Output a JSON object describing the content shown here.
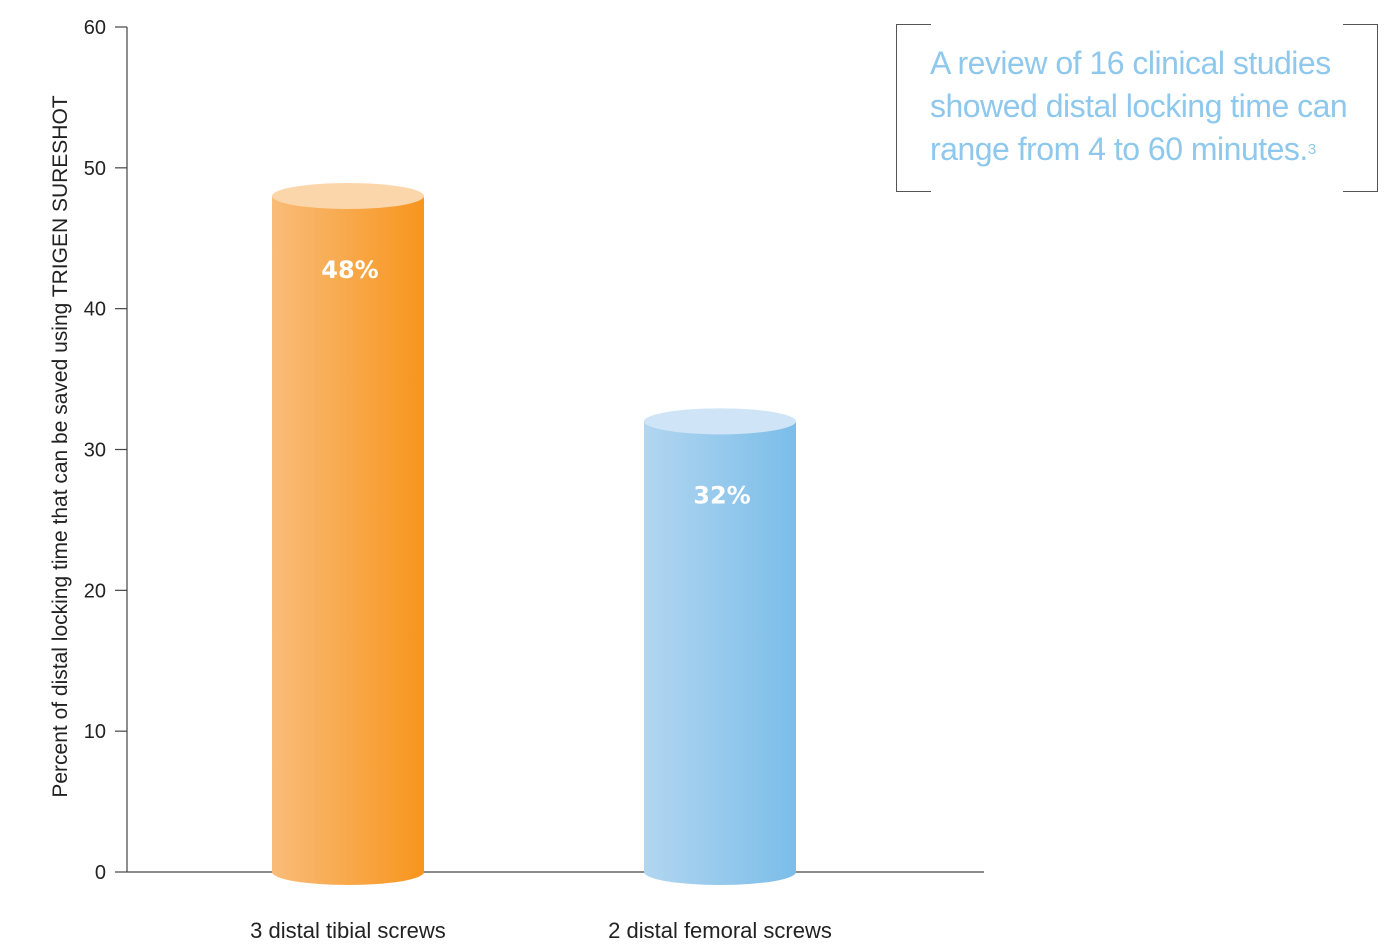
{
  "chart_data": {
    "type": "bar",
    "title": "",
    "categories": [
      "3 distal tibial screws",
      "2 distal femoral screws"
    ],
    "values": [
      48,
      32
    ],
    "data_labels": [
      "48%",
      "32%"
    ],
    "xlabel": "",
    "ylabel": "Percent of distal locking time that can be saved using TRIGEN SURESHOT",
    "ylim": [
      0,
      60
    ],
    "yticks": [
      0,
      10,
      20,
      30,
      40,
      50,
      60
    ],
    "grid": false,
    "legend": "none",
    "colors": [
      "#f7951d",
      "#7bbde9"
    ]
  },
  "callout": {
    "text": "A review of 16 clinical studies showed distal locking time can range from 4 to 60 minutes.",
    "superscript": "3",
    "color": "#8ec8ec"
  }
}
